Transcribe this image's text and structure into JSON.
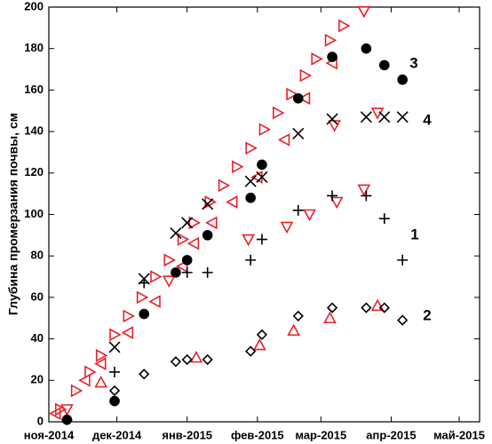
{
  "chart_data": {
    "type": "scatter",
    "ylabel": "Глубина промерзания почвы, см",
    "xlim": [
      0,
      190
    ],
    "xticks": [
      {
        "value": 0,
        "label": "ноя-2014"
      },
      {
        "value": 30,
        "label": "дек-2014"
      },
      {
        "value": 61,
        "label": "янв-2015"
      },
      {
        "value": 92,
        "label": "фев-2015"
      },
      {
        "value": 120,
        "label": "мар-2015"
      },
      {
        "value": 151,
        "label": "апр-2015"
      },
      {
        "value": 181,
        "label": "май-2015"
      }
    ],
    "ylim": [
      0,
      200
    ],
    "yticks": [
      0,
      20,
      40,
      60,
      80,
      100,
      120,
      140,
      160,
      180,
      200
    ],
    "grid": false,
    "annotations": [
      "3",
      "4",
      "1",
      "2"
    ],
    "series": [
      {
        "marker": "right-triangle",
        "color": "#e8202a",
        "x": [
          5,
          12,
          18,
          23,
          29,
          35,
          41,
          47,
          53,
          59,
          64,
          71,
          77,
          83,
          89,
          95,
          101,
          107,
          113,
          118,
          124,
          130
        ],
        "values": [
          6,
          15,
          24,
          32,
          42,
          51,
          60,
          70,
          78,
          88,
          96,
          106,
          114,
          123,
          132,
          141,
          149,
          158,
          167,
          175,
          184,
          191
        ]
      },
      {
        "marker": "left-triangle",
        "color": "#e8202a",
        "x": [
          3,
          16,
          23,
          35,
          47,
          59,
          64,
          72,
          81,
          92,
          104,
          113,
          125
        ],
        "values": [
          4,
          20,
          28,
          43,
          58,
          75,
          86,
          96,
          106,
          118,
          136,
          156,
          173
        ]
      },
      {
        "marker": "down-triangle",
        "color": "#e8202a",
        "x": [
          8,
          53,
          88,
          105,
          115,
          127,
          126,
          139,
          139,
          145
        ],
        "values": [
          6,
          68,
          88,
          94,
          100,
          106,
          143,
          112,
          198,
          149
        ]
      },
      {
        "marker": "up-triangle",
        "color": "#e8202a",
        "x": [
          23,
          65,
          93,
          108,
          124,
          145
        ],
        "values": [
          19,
          31,
          37,
          44,
          50,
          56
        ]
      },
      {
        "marker": "circle",
        "color": "#000000",
        "x": [
          8,
          29,
          42,
          56,
          61,
          70,
          89,
          94,
          110,
          125,
          140,
          148,
          156
        ],
        "values": [
          1,
          10,
          52,
          72,
          78,
          90,
          108,
          124,
          156,
          176,
          180,
          172,
          165
        ]
      },
      {
        "marker": "x",
        "color": "#000000",
        "x": [
          29,
          42,
          56,
          61,
          70,
          89,
          94,
          110,
          125,
          140,
          148,
          156
        ],
        "values": [
          36,
          69,
          91,
          96,
          105,
          116,
          118,
          139,
          146,
          147,
          147,
          147
        ]
      },
      {
        "marker": "plus",
        "color": "#000000",
        "x": [
          8,
          29,
          42,
          61,
          70,
          89,
          94,
          110,
          125,
          140,
          148,
          156
        ],
        "values": [
          1,
          24,
          67,
          72,
          72,
          78,
          88,
          102,
          109,
          109,
          98,
          78
        ]
      },
      {
        "marker": "diamond",
        "color": "#000000",
        "x": [
          8,
          29,
          42,
          56,
          61,
          70,
          89,
          94,
          110,
          125,
          140,
          148,
          156
        ],
        "values": [
          1,
          15,
          23,
          29,
          30,
          30,
          34,
          42,
          51,
          55,
          55,
          55,
          49
        ]
      }
    ]
  }
}
